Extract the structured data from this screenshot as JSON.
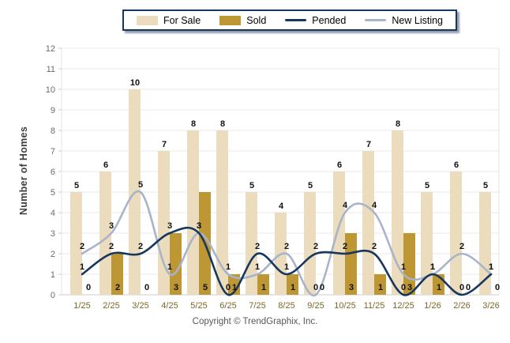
{
  "chart_data": {
    "type": "bar+line",
    "title": "",
    "categories": [
      "1/25",
      "2/25",
      "3/25",
      "4/25",
      "5/25",
      "6/25",
      "7/25",
      "8/25",
      "9/25",
      "10/25",
      "11/25",
      "12/25",
      "1/26",
      "2/26",
      "3/26"
    ],
    "series": [
      {
        "name": "For Sale",
        "type": "bar",
        "color": "#EADCBC",
        "values": [
          5,
          6,
          10,
          7,
          8,
          8,
          5,
          4,
          5,
          6,
          7,
          8,
          5,
          6,
          5
        ]
      },
      {
        "name": "Sold",
        "type": "bar",
        "color": "#BD9733",
        "values": [
          0,
          2,
          0,
          3,
          5,
          1,
          1,
          1,
          0,
          3,
          1,
          3,
          1,
          0,
          0
        ]
      },
      {
        "name": "Pended",
        "type": "line",
        "color": "#17375E",
        "values": [
          1,
          2,
          2,
          3,
          3,
          0,
          2,
          1,
          2,
          2,
          2,
          0,
          1,
          0,
          1
        ]
      },
      {
        "name": "New Listing",
        "type": "line",
        "color": "#A9B3C9",
        "values": [
          2,
          3,
          5,
          1,
          3,
          1,
          1,
          2,
          0,
          4,
          4,
          1,
          1,
          2,
          1
        ]
      }
    ],
    "xlabel": "",
    "ylabel": "Number of Homes",
    "ylim": [
      0,
      12
    ],
    "ytick_step": 1,
    "yticks": [
      0,
      1,
      2,
      3,
      4,
      5,
      6,
      7,
      8,
      9,
      10,
      11,
      12
    ],
    "grid": true,
    "legend_position": "top"
  },
  "footer": {
    "copyright": "Copyright © TrendGraphix, Inc."
  },
  "colors": {
    "grid_line": "#e8e8e8",
    "axis_line": "#cccccc",
    "value_label": "#111111",
    "x_tick_label": "#7c6627",
    "y_tick_label": "#6e6a60"
  }
}
